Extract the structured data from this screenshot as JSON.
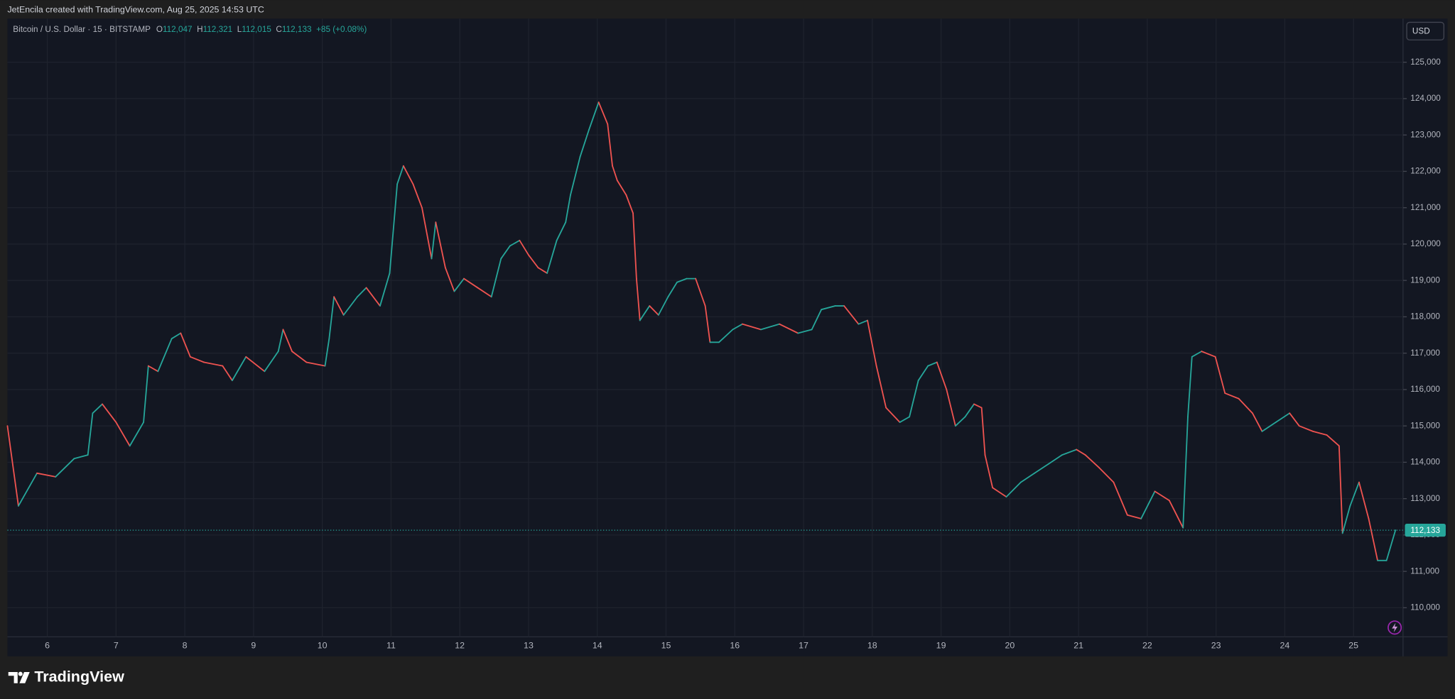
{
  "attribution": "JetEncila created with TradingView.com, Aug 25, 2025 14:53 UTC",
  "brand": "TradingView",
  "chart_data": {
    "type": "line",
    "title": "Bitcoin / U.S. Dollar · 15 · BITSTAMP",
    "legend_values": [
      {
        "label": "O",
        "value": "112,047"
      },
      {
        "label": "H",
        "value": "112,321"
      },
      {
        "label": "L",
        "value": "112,015"
      },
      {
        "label": "C",
        "value": "112,133"
      }
    ],
    "change": "+85 (+0.08%)",
    "currency": "USD",
    "up_color": "#26a69a",
    "down_color": "#ef5350",
    "grid": true,
    "last_price": {
      "value": 112133,
      "label": "112,133"
    },
    "x": [
      5.42,
      5.58,
      5.85,
      6.12,
      6.39,
      6.59,
      6.66,
      6.8,
      7.0,
      7.2,
      7.4,
      7.47,
      7.61,
      7.81,
      7.94,
      8.08,
      8.28,
      8.55,
      8.69,
      8.89,
      9.16,
      9.36,
      9.43,
      9.56,
      9.77,
      10.04,
      10.1,
      10.17,
      10.31,
      10.51,
      10.64,
      10.84,
      10.98,
      11.09,
      11.18,
      11.32,
      11.45,
      11.59,
      11.65,
      11.79,
      11.92,
      12.06,
      12.26,
      12.46,
      12.6,
      12.73,
      12.87,
      13.0,
      13.14,
      13.27,
      13.41,
      13.54,
      13.61,
      13.75,
      13.88,
      14.02,
      14.15,
      14.22,
      14.29,
      14.42,
      14.52,
      14.57,
      14.62,
      14.76,
      14.89,
      15.03,
      15.16,
      15.3,
      15.43,
      15.57,
      15.64,
      15.77,
      15.97,
      16.11,
      16.38,
      16.65,
      16.92,
      17.12,
      17.26,
      17.46,
      17.59,
      17.8,
      17.93,
      18.06,
      18.2,
      18.4,
      18.54,
      18.67,
      18.81,
      18.94,
      19.08,
      19.21,
      19.35,
      19.48,
      19.59,
      19.64,
      19.75,
      19.95,
      20.16,
      20.36,
      20.56,
      20.76,
      20.97,
      21.1,
      21.3,
      21.51,
      21.71,
      21.91,
      22.11,
      22.32,
      22.52,
      22.59,
      22.65,
      22.79,
      22.99,
      23.13,
      23.33,
      23.53,
      23.67,
      23.87,
      24.07,
      24.21,
      24.41,
      24.61,
      24.79,
      24.84,
      24.95,
      25.08,
      25.22,
      25.35,
      25.48,
      25.61
    ],
    "values": [
      115000,
      112800,
      113700,
      113600,
      114100,
      114200,
      115350,
      115600,
      115100,
      114450,
      115100,
      116650,
      116500,
      117400,
      117550,
      116900,
      116750,
      116650,
      116250,
      116900,
      116500,
      117050,
      117650,
      117050,
      116750,
      116650,
      117400,
      118550,
      118050,
      118550,
      118800,
      118300,
      119200,
      121650,
      122150,
      121650,
      121000,
      119600,
      120600,
      119350,
      118700,
      119050,
      118800,
      118550,
      119600,
      119950,
      120100,
      119700,
      119350,
      119200,
      120100,
      120600,
      121350,
      122400,
      123150,
      123900,
      123300,
      122150,
      121750,
      121350,
      120850,
      119050,
      117900,
      118300,
      118050,
      118550,
      118950,
      119050,
      119050,
      118300,
      117300,
      117300,
      117650,
      117800,
      117650,
      117800,
      117550,
      117650,
      118200,
      118300,
      118300,
      117800,
      117900,
      116650,
      115500,
      115100,
      115250,
      116250,
      116650,
      116750,
      116000,
      115000,
      115250,
      115600,
      115500,
      114200,
      113300,
      113050,
      113450,
      113700,
      113950,
      114200,
      114350,
      114200,
      113850,
      113450,
      112550,
      112450,
      113200,
      112950,
      112200,
      115250,
      116900,
      117050,
      116900,
      115900,
      115750,
      115350,
      114850,
      115100,
      115350,
      115000,
      114850,
      114750,
      114450,
      112050,
      112800,
      113450,
      112450,
      111300,
      111300,
      112133
    ],
    "xlim": [
      5.42,
      25.72
    ],
    "xticks": [
      6,
      7,
      8,
      9,
      10,
      11,
      12,
      13,
      14,
      15,
      16,
      17,
      18,
      19,
      20,
      21,
      22,
      23,
      24,
      25
    ],
    "ylim": [
      109200,
      126200
    ],
    "yticks": [
      {
        "value": 110000,
        "label": "110,000"
      },
      {
        "value": 111000,
        "label": "111,000"
      },
      {
        "value": 112000,
        "label": "112,000"
      },
      {
        "value": 113000,
        "label": "113,000"
      },
      {
        "value": 114000,
        "label": "114,000"
      },
      {
        "value": 115000,
        "label": "115,000"
      },
      {
        "value": 116000,
        "label": "116,000"
      },
      {
        "value": 117000,
        "label": "117,000"
      },
      {
        "value": 118000,
        "label": "118,000"
      },
      {
        "value": 119000,
        "label": "119,000"
      },
      {
        "value": 120000,
        "label": "120,000"
      },
      {
        "value": 121000,
        "label": "121,000"
      },
      {
        "value": 122000,
        "label": "122,000"
      },
      {
        "value": 123000,
        "label": "123,000"
      },
      {
        "value": 124000,
        "label": "124,000"
      },
      {
        "value": 125000,
        "label": "125,000"
      }
    ]
  }
}
